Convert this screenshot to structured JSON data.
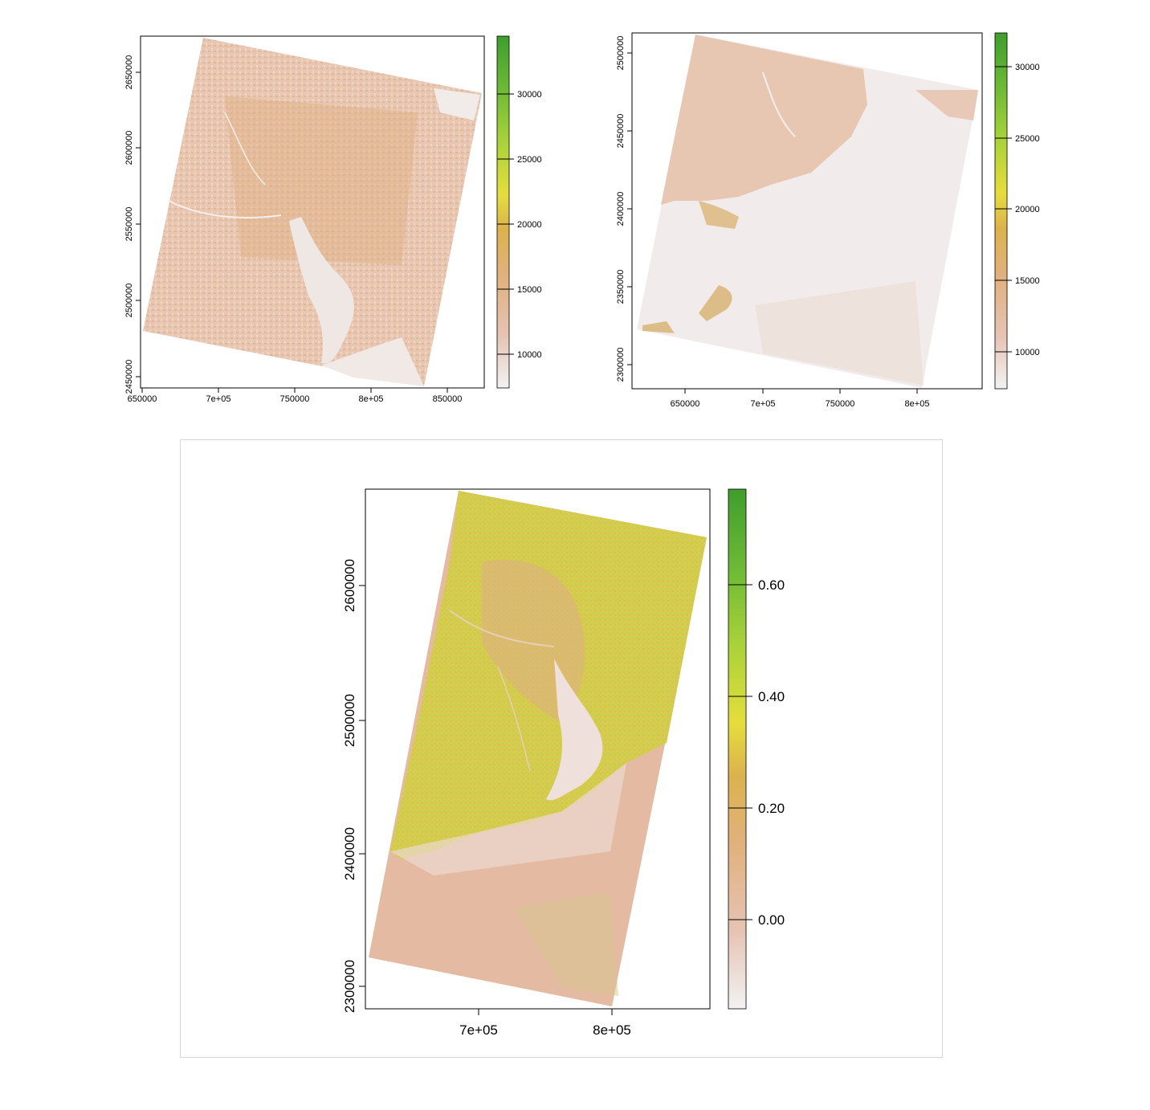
{
  "panels": [
    {
      "id": "top-left",
      "x_ticks": [
        "650000",
        "7e+05",
        "750000",
        "8e+05",
        "850000"
      ],
      "y_ticks": [
        "2450000",
        "2500000",
        "2550000",
        "2600000",
        "2650000"
      ],
      "legend_ticks": [
        "10000",
        "15000",
        "20000",
        "25000",
        "30000"
      ]
    },
    {
      "id": "top-right",
      "x_ticks": [
        "650000",
        "7e+05",
        "750000",
        "8e+05"
      ],
      "y_ticks": [
        "2300000",
        "2350000",
        "2400000",
        "2450000",
        "2500000"
      ],
      "legend_ticks": [
        "10000",
        "15000",
        "20000",
        "25000",
        "30000"
      ]
    },
    {
      "id": "bottom",
      "x_ticks": [
        "7e+05",
        "8e+05"
      ],
      "y_ticks": [
        "2300000",
        "2400000",
        "2500000",
        "2600000"
      ],
      "legend_ticks": [
        "0.00",
        "0.20",
        "0.40",
        "0.60"
      ]
    }
  ],
  "colors": {
    "ramp": [
      "#f2f2f2",
      "#e6c3b3",
      "#e1b17c",
      "#dcb24e",
      "#e5dd3d",
      "#a9d23a",
      "#6cb936",
      "#3f9e2e"
    ],
    "frame": "#000000",
    "outer_border": "#d6d6d6"
  }
}
